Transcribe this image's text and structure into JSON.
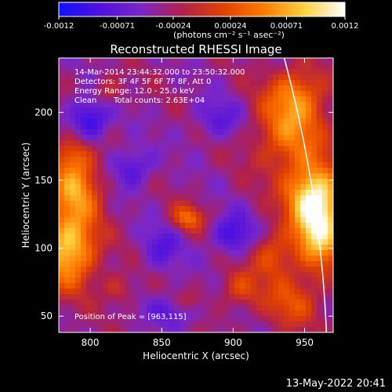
{
  "colorbar": {
    "ticks": [
      "-0.0012",
      "-0.00071",
      "-0.00024",
      "0.00024",
      "0.00071",
      "0.0012"
    ],
    "tick_values": [
      -0.0012,
      -0.00071,
      -0.00024,
      0.00024,
      0.00071,
      0.0012
    ],
    "range": [
      -0.0012,
      0.0012
    ],
    "unit_label": "(photons cm⁻² s⁻¹ asec⁻²)",
    "colors": [
      "#1010ff",
      "#5010e0",
      "#7a26c8",
      "#b02050",
      "#e04000",
      "#ff7a00",
      "#ffd040",
      "#ffffff"
    ]
  },
  "chart_data": {
    "type": "heatmap",
    "title": "Reconstructed RHESSI Image",
    "xlabel": "Heliocentric X (arcsec)",
    "ylabel": "Heliocentric Y (arcsec)",
    "xlim": [
      778,
      970
    ],
    "ylim": [
      38,
      240
    ],
    "x_ticks": [
      800,
      850,
      900,
      950
    ],
    "y_ticks": [
      50,
      100,
      150,
      200
    ],
    "annotations": {
      "time_range": "14-Mar-2014 23:44:32.000 to 23:50:32.000",
      "detectors": "Detectors: 3F 4F 5F 6F 7F 8F, Att 0",
      "energy_range": "Energy Range: 12.0 - 25.0 keV",
      "method": "Clean",
      "total_counts": "Total counts: 2.63E+04",
      "peak": "Position of Peak = [963,115]"
    },
    "peak": {
      "x": 963,
      "y": 115
    },
    "limb": {
      "center": [
        0,
        0
      ],
      "radius_arcsec": 966
    },
    "sources": [
      {
        "x": 785,
        "y": 100,
        "amp": 0.00125,
        "sx": 14,
        "sy": 20
      },
      {
        "x": 790,
        "y": 145,
        "amp": 0.0009,
        "sx": 12,
        "sy": 16
      },
      {
        "x": 788,
        "y": 170,
        "amp": 0.00055,
        "sx": 10,
        "sy": 10
      },
      {
        "x": 960,
        "y": 115,
        "amp": 0.0013,
        "sx": 12,
        "sy": 22
      },
      {
        "x": 955,
        "y": 140,
        "amp": 0.0009,
        "sx": 14,
        "sy": 16
      },
      {
        "x": 940,
        "y": 185,
        "amp": 0.0008,
        "sx": 18,
        "sy": 22
      },
      {
        "x": 945,
        "y": 215,
        "amp": 0.0006,
        "sx": 14,
        "sy": 14
      },
      {
        "x": 928,
        "y": 95,
        "amp": 0.0006,
        "sx": 10,
        "sy": 12
      },
      {
        "x": 940,
        "y": 60,
        "amp": 0.00055,
        "sx": 14,
        "sy": 14
      },
      {
        "x": 905,
        "y": 70,
        "amp": 0.0005,
        "sx": 10,
        "sy": 10
      },
      {
        "x": 868,
        "y": 122,
        "amp": 0.0007,
        "sx": 8,
        "sy": 7
      },
      {
        "x": 812,
        "y": 215,
        "amp": 0.0004,
        "sx": 8,
        "sy": 8
      },
      {
        "x": 820,
        "y": 70,
        "amp": 0.00035,
        "sx": 8,
        "sy": 8
      },
      {
        "x": 868,
        "y": 60,
        "amp": 0.0004,
        "sx": 8,
        "sy": 6
      },
      {
        "x": 800,
        "y": 195,
        "amp": -0.0007,
        "sx": 10,
        "sy": 12
      },
      {
        "x": 900,
        "y": 110,
        "amp": -0.0006,
        "sx": 10,
        "sy": 10
      },
      {
        "x": 860,
        "y": 55,
        "amp": -0.0005,
        "sx": 12,
        "sy": 8
      },
      {
        "x": 830,
        "y": 160,
        "amp": -0.0005,
        "sx": 10,
        "sy": 10
      },
      {
        "x": 890,
        "y": 195,
        "amp": -0.0004,
        "sx": 12,
        "sy": 10
      },
      {
        "x": 850,
        "y": 100,
        "amp": -0.0004,
        "sx": 10,
        "sy": 12
      }
    ]
  },
  "footer_timestamp": "13-May-2022 20:41"
}
